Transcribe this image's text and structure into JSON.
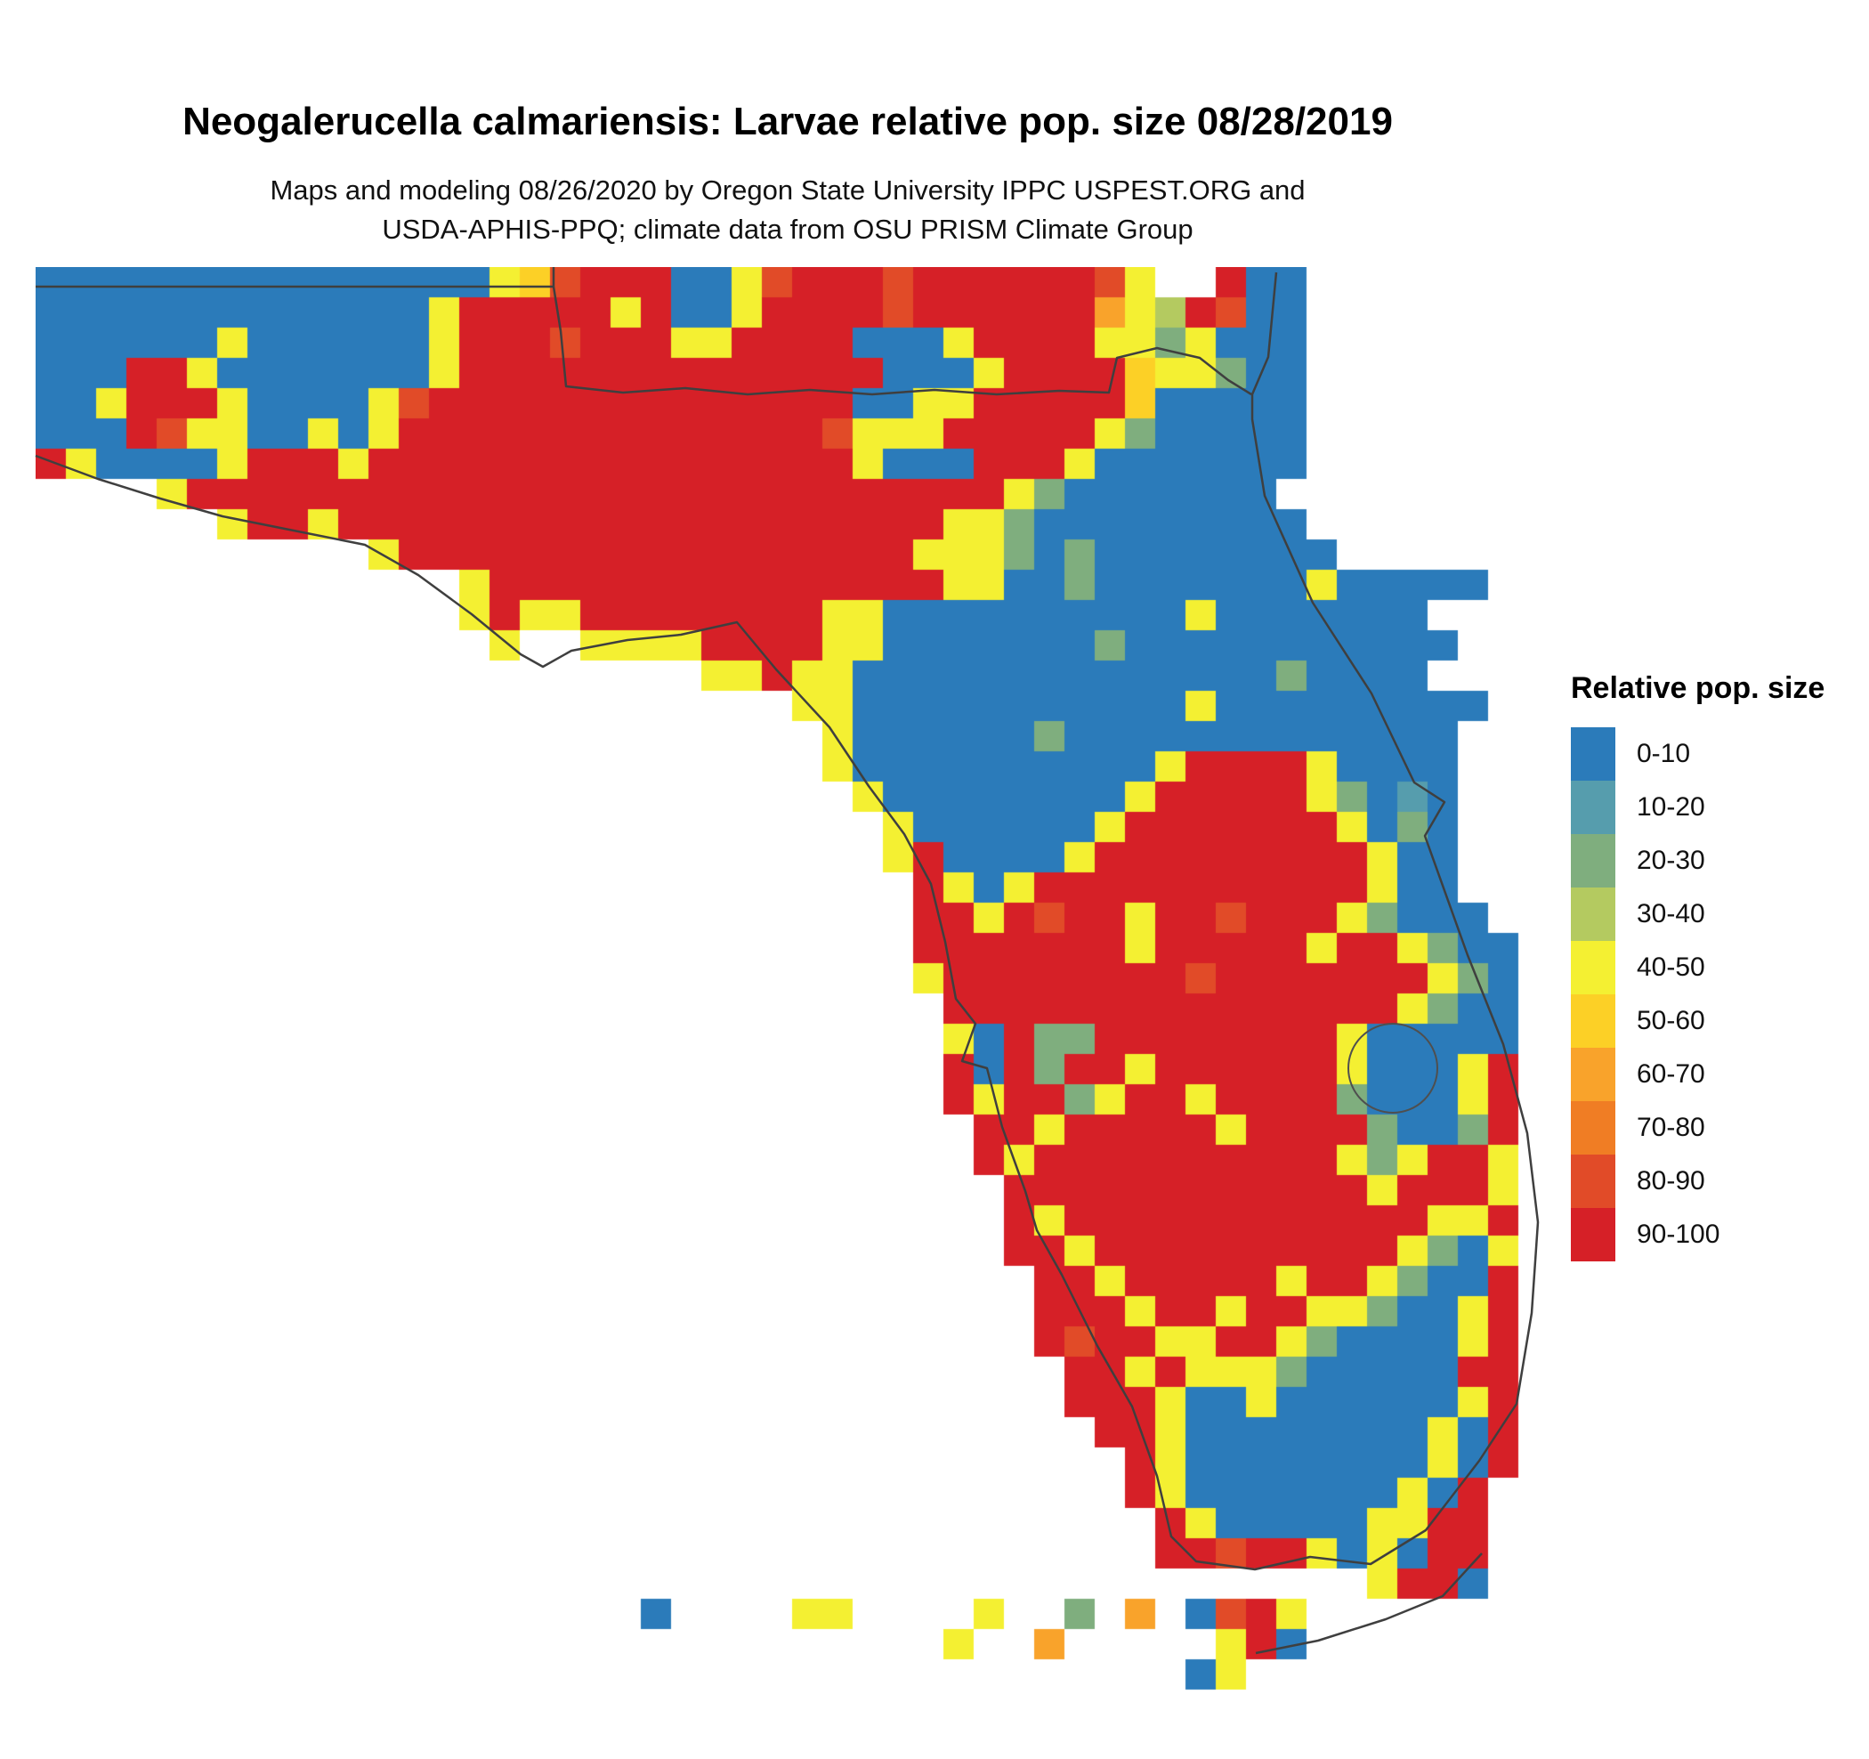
{
  "header": {
    "title": "Neogalerucella calmariensis: Larvae relative pop. size 08/28/2019",
    "subtitle_line1": "Maps and modeling 08/26/2020 by Oregon State University IPPC USPEST.ORG and",
    "subtitle_line2": "USDA-APHIS-PPQ; climate data from OSU PRISM Climate Group"
  },
  "legend": {
    "title": "Relative pop. size",
    "bins": [
      {
        "label": "0-10",
        "color": "#2b7bba"
      },
      {
        "label": "10-20",
        "color": "#569dad"
      },
      {
        "label": "20-30",
        "color": "#7fae7e"
      },
      {
        "label": "30-40",
        "color": "#b4ca60"
      },
      {
        "label": "40-50",
        "color": "#f4f032"
      },
      {
        "label": "50-60",
        "color": "#fcd026"
      },
      {
        "label": "60-70",
        "color": "#f9a32b"
      },
      {
        "label": "70-80",
        "color": "#f07d24"
      },
      {
        "label": "80-90",
        "color": "#e14b28"
      },
      {
        "label": "90-100",
        "color": "#d62027"
      }
    ]
  },
  "map_raster": {
    "cell_size": 34,
    "palette": {
      "0": "#2b7bba",
      "1": "#569dad",
      "2": "#7fae7e",
      "3": "#b4ca60",
      "4": "#f4f032",
      "5": "#fcd026",
      "6": "#f9a32b",
      "7": "#f07d24",
      "8": "#e14b28",
      "9": "#d62027"
    },
    "rows": [
      "0000000000000004589990048999899999984..900........",
      "000000000000049999949004999989999996439800........",
      "000000400000049998999449999000499994424000........",
      "000994000000049999999999999900049999544200........",
      "004999400004899999999999999004499999500000........",
      "000984400404999999999999998444999994200000........",
      "940000499949999999999999999400099940000000........",
      "....4999999999999999999999999999420000000........."
    ],
    "rows_note": "rows continue in rows2 (split only for readability)",
    "rows2": [
      "......499499999999999999999999442000000000.......",
      "...........49999999999999999944420200000000......."
    ]
  }
}
